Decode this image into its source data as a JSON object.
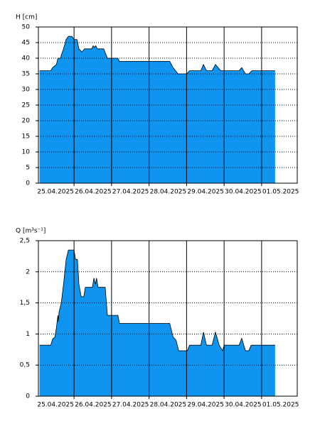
{
  "chart_data": [
    {
      "type": "area",
      "y_label": "H [cm]",
      "color": "#0f95f0",
      "line_color": "#000000",
      "grid": true,
      "xlim": [
        0.05,
        6.95
      ],
      "ylim": [
        0,
        50
      ],
      "xticks": [
        {
          "value": 0,
          "label": "25.04.2025"
        },
        {
          "value": 1,
          "label": "26.04.2025"
        },
        {
          "value": 2,
          "label": "27.04.2025"
        },
        {
          "value": 3,
          "label": "28.04.2025"
        },
        {
          "value": 4,
          "label": "29.04.2025"
        },
        {
          "value": 5,
          "label": "30.04.2025"
        },
        {
          "value": 6,
          "label": "01.05.2025"
        }
      ],
      "yticks": [
        0,
        5,
        10,
        15,
        20,
        25,
        30,
        35,
        40,
        45,
        50
      ],
      "x": [
        0.08,
        0.38,
        0.43,
        0.53,
        0.57,
        0.64,
        0.66,
        0.72,
        0.79,
        0.85,
        0.94,
        1.0,
        1.08,
        1.13,
        1.21,
        1.28,
        1.47,
        1.51,
        1.55,
        1.58,
        1.62,
        1.79,
        1.89,
        2.17,
        2.21,
        3.55,
        3.64,
        3.77,
        4.0,
        4.08,
        4.38,
        4.45,
        4.53,
        4.68,
        4.77,
        4.91,
        5.4,
        5.47,
        5.57,
        5.66,
        5.74,
        6.36
      ],
      "values": [
        36,
        36,
        37,
        38,
        40,
        40,
        41,
        43,
        46,
        47,
        47,
        46,
        46,
        43,
        42,
        43,
        43,
        44,
        43.5,
        44,
        43,
        43,
        40,
        40,
        39,
        39,
        37,
        35,
        35,
        36,
        36,
        38,
        36,
        36,
        38,
        36,
        36,
        37,
        35,
        35,
        36,
        36
      ]
    },
    {
      "type": "area",
      "y_label": "Q [m³s⁻¹]",
      "color": "#0f95f0",
      "line_color": "#000000",
      "grid": true,
      "xlim": [
        0.05,
        6.95
      ],
      "ylim": [
        0,
        2.5
      ],
      "xticks": [
        {
          "value": 0,
          "label": "25.04.2025"
        },
        {
          "value": 1,
          "label": "26.04.2025"
        },
        {
          "value": 2,
          "label": "27.04.2025"
        },
        {
          "value": 3,
          "label": "28.04.2025"
        },
        {
          "value": 4,
          "label": "29.04.2025"
        },
        {
          "value": 5,
          "label": "30.04.2025"
        },
        {
          "value": 6,
          "label": "01.05.2025"
        }
      ],
      "yticks": [
        0,
        {
          "value": 0.5,
          "label": "0,5"
        },
        1,
        {
          "value": 1.5,
          "label": "1,5"
        },
        2,
        {
          "value": 2.5,
          "label": "2,5"
        }
      ],
      "x": [
        0.08,
        0.38,
        0.43,
        0.49,
        0.53,
        0.57,
        0.58,
        0.6,
        0.66,
        0.72,
        0.79,
        0.85,
        1.0,
        1.04,
        1.09,
        1.13,
        1.19,
        1.26,
        1.3,
        1.49,
        1.53,
        1.57,
        1.6,
        1.64,
        1.83,
        1.89,
        2.17,
        2.21,
        3.55,
        3.64,
        3.72,
        3.79,
        4.02,
        4.08,
        4.38,
        4.45,
        4.53,
        4.68,
        4.77,
        4.87,
        4.96,
        5.0,
        5.4,
        5.47,
        5.57,
        5.66,
        5.72,
        6.36
      ],
      "values": [
        0.82,
        0.82,
        0.92,
        0.95,
        1.1,
        1.3,
        1.2,
        1.35,
        1.5,
        1.8,
        2.2,
        2.35,
        2.35,
        2.2,
        2.2,
        1.8,
        1.6,
        1.6,
        1.75,
        1.75,
        1.9,
        1.8,
        1.9,
        1.75,
        1.75,
        1.3,
        1.3,
        1.17,
        1.17,
        0.95,
        0.9,
        0.73,
        0.73,
        0.82,
        0.82,
        1.03,
        0.82,
        0.82,
        1.03,
        0.82,
        0.73,
        0.82,
        0.82,
        0.93,
        0.73,
        0.73,
        0.82,
        0.82
      ]
    }
  ]
}
